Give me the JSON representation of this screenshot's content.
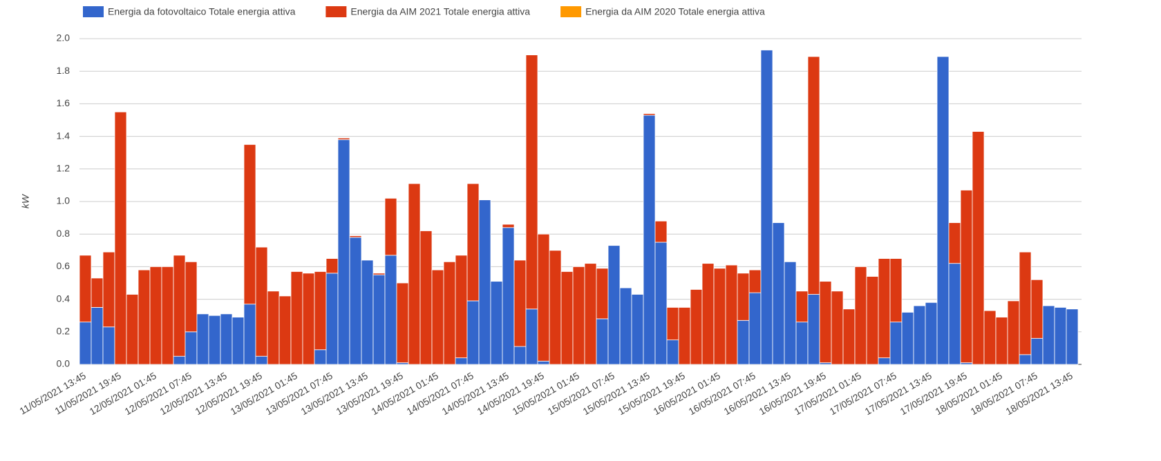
{
  "chart_data": {
    "type": "stacked-bar",
    "y_label": "kW",
    "ylim": [
      0,
      2
    ],
    "yticks": [
      {
        "value": 0,
        "label": "0.0"
      },
      0.2,
      0.4,
      0.6,
      0.8,
      {
        "value": 1,
        "label": "1.0"
      },
      1.2,
      1.4,
      1.6,
      1.8,
      {
        "value": 2,
        "label": "2.0"
      }
    ],
    "grid": true,
    "legend": "top",
    "categories": [
      "11/05/2021 13:45",
      null,
      null,
      "11/05/2021 19:45",
      null,
      null,
      "12/05/2021 01:45",
      null,
      null,
      "12/05/2021 07:45",
      null,
      null,
      "12/05/2021 13:45",
      null,
      null,
      "12/05/2021 19:45",
      null,
      null,
      "13/05/2021 01:45",
      null,
      null,
      "13/05/2021 07:45",
      null,
      null,
      "13/05/2021 13:45",
      null,
      null,
      "13/05/2021 19:45",
      null,
      null,
      "14/05/2021 01:45",
      null,
      null,
      "14/05/2021 07:45",
      null,
      null,
      "14/05/2021 13:45",
      null,
      null,
      "14/05/2021 19:45",
      null,
      null,
      "15/05/2021 01:45",
      null,
      null,
      "15/05/2021 07:45",
      null,
      null,
      "15/05/2021 13:45",
      null,
      null,
      "15/05/2021 19:45",
      null,
      null,
      "16/05/2021 01:45",
      null,
      null,
      "16/05/2021 07:45",
      null,
      null,
      "16/05/2021 13:45",
      null,
      null,
      "16/05/2021 19:45",
      null,
      null,
      "17/05/2021 01:45",
      null,
      null,
      "17/05/2021 07:45",
      null,
      null,
      "17/05/2021 13:45",
      null,
      null,
      "17/05/2021 19:45",
      null,
      null,
      "18/05/2021 01:45",
      null,
      null,
      "18/05/2021 07:45",
      null,
      null,
      "18/05/2021 13:45"
    ],
    "series": [
      {
        "name": "Energia da fotovoltaico Totale energia attiva",
        "color": "#3366cc",
        "values": [
          0.26,
          0.35,
          0.23,
          0,
          0,
          0,
          0,
          0,
          0.05,
          0.2,
          0.31,
          0.3,
          0.31,
          0.29,
          0.37,
          0.05,
          0,
          0,
          0,
          0,
          0.09,
          0.56,
          1.38,
          0.78,
          0.64,
          0.55,
          0.67,
          0.01,
          0,
          0,
          0,
          0,
          0.04,
          0.39,
          1.01,
          0.51,
          0.84,
          0.11,
          0.34,
          0.02,
          0,
          0,
          0,
          0,
          0.28,
          0.73,
          0.47,
          0.43,
          1.53,
          0.75,
          0.15,
          0,
          0,
          0,
          0,
          0,
          0.27,
          0.44,
          1.93,
          0.87,
          0.63,
          0.26,
          0.43,
          0.01,
          0,
          0,
          0,
          0,
          0.04,
          0.26,
          0.32,
          0.36,
          0.38,
          1.89,
          0.62,
          0.01,
          0,
          0,
          0,
          0,
          0.06,
          0.16,
          0.36,
          0.35,
          0.34
        ]
      },
      {
        "name": "Energia da AIM 2021 Totale energia attiva",
        "color": "#dc3912",
        "values": [
          0.41,
          0.18,
          0.46,
          1.55,
          0.43,
          0.58,
          0.6,
          0.6,
          0.62,
          0.43,
          0,
          0,
          0,
          0,
          0.98,
          0.67,
          0.45,
          0.42,
          0.57,
          0.56,
          0.48,
          0.09,
          0.01,
          0.01,
          0,
          0.01,
          0.35,
          0.49,
          1.11,
          0.82,
          0.58,
          0.63,
          0.63,
          0.72,
          0,
          0,
          0.02,
          0.53,
          1.56,
          0.78,
          0.7,
          0.57,
          0.6,
          0.62,
          0.31,
          0,
          0,
          0,
          0.01,
          0.13,
          0.2,
          0.35,
          0.46,
          0.62,
          0.59,
          0.61,
          0.29,
          0.14,
          0,
          0,
          0,
          0.19,
          1.46,
          0.5,
          0.45,
          0.34,
          0.6,
          0.54,
          0.61,
          0.39,
          0,
          0,
          0,
          0,
          0.25,
          1.06,
          1.43,
          0.33,
          0.29,
          0.39,
          0.63,
          0.36,
          0,
          0,
          0
        ]
      },
      {
        "name": "Energia da AIM 2020 Totale energia attiva",
        "color": "#ff9900",
        "values": [
          0,
          0,
          0,
          0,
          0,
          0,
          0,
          0,
          0,
          0,
          0,
          0,
          0,
          0,
          0,
          0,
          0,
          0,
          0,
          0,
          0,
          0,
          0,
          0,
          0,
          0,
          0,
          0,
          0,
          0,
          0,
          0,
          0,
          0,
          0,
          0,
          0,
          0,
          0,
          0,
          0,
          0,
          0,
          0,
          0,
          0,
          0,
          0,
          0,
          0,
          0,
          0,
          0,
          0,
          0,
          0,
          0,
          0,
          0,
          0,
          0,
          0,
          0,
          0,
          0,
          0,
          0,
          0,
          0,
          0,
          0,
          0,
          0,
          0,
          0,
          0,
          0,
          0,
          0,
          0,
          0,
          0,
          0,
          0,
          0
        ]
      }
    ]
  }
}
